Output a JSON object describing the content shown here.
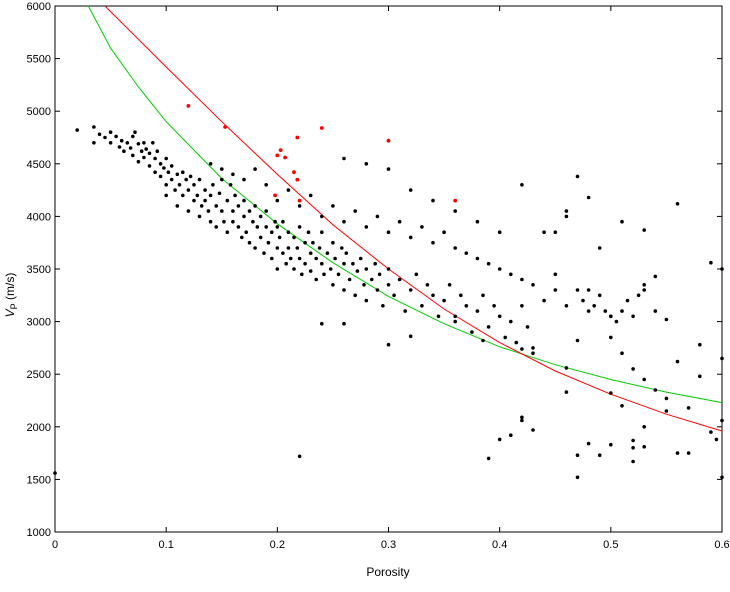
{
  "chart_data": {
    "type": "scatter",
    "xlabel": "Porosity",
    "ylabel_main": "V",
    "ylabel_sub": "P",
    "ylabel_unit": " (m/s)",
    "xlim": [
      0,
      0.6
    ],
    "ylim": [
      1000,
      6000
    ],
    "x_ticks": [
      "0",
      "0.1",
      "0.2",
      "0.3",
      "0.4",
      "0.5",
      "0.6"
    ],
    "y_ticks": [
      "1000",
      "1500",
      "2000",
      "2500",
      "3000",
      "3500",
      "4000",
      "4500",
      "5000",
      "5500",
      "6000"
    ],
    "grid": false,
    "legend": "none",
    "colors": {
      "points": "#000000",
      "highlight_points": "#ff0000",
      "green_curve": "#00cc00",
      "red_curve": "#ff0000"
    },
    "series_black": [
      [
        0.0,
        1560
      ],
      [
        0.02,
        4820
      ],
      [
        0.035,
        4850
      ],
      [
        0.035,
        4700
      ],
      [
        0.04,
        4780
      ],
      [
        0.045,
        4750
      ],
      [
        0.05,
        4800
      ],
      [
        0.05,
        4700
      ],
      [
        0.055,
        4760
      ],
      [
        0.058,
        4660
      ],
      [
        0.06,
        4720
      ],
      [
        0.062,
        4620
      ],
      [
        0.065,
        4700
      ],
      [
        0.068,
        4650
      ],
      [
        0.07,
        4760
      ],
      [
        0.07,
        4580
      ],
      [
        0.072,
        4800
      ],
      [
        0.075,
        4690
      ],
      [
        0.075,
        4520
      ],
      [
        0.078,
        4620
      ],
      [
        0.08,
        4700
      ],
      [
        0.08,
        4560
      ],
      [
        0.082,
        4640
      ],
      [
        0.085,
        4480
      ],
      [
        0.085,
        4600
      ],
      [
        0.088,
        4700
      ],
      [
        0.09,
        4550
      ],
      [
        0.09,
        4420
      ],
      [
        0.092,
        4620
      ],
      [
        0.095,
        4500
      ],
      [
        0.095,
        4380
      ],
      [
        0.098,
        4460
      ],
      [
        0.1,
        4550
      ],
      [
        0.1,
        4300
      ],
      [
        0.1,
        4200
      ],
      [
        0.102,
        4420
      ],
      [
        0.105,
        4350
      ],
      [
        0.105,
        4480
      ],
      [
        0.108,
        4250
      ],
      [
        0.11,
        4400
      ],
      [
        0.11,
        4100
      ],
      [
        0.112,
        4300
      ],
      [
        0.115,
        4420
      ],
      [
        0.115,
        4200
      ],
      [
        0.118,
        4350
      ],
      [
        0.12,
        4250
      ],
      [
        0.12,
        4050
      ],
      [
        0.122,
        4380
      ],
      [
        0.125,
        4150
      ],
      [
        0.125,
        4300
      ],
      [
        0.128,
        4200
      ],
      [
        0.13,
        4350
      ],
      [
        0.13,
        4000
      ],
      [
        0.132,
        4100
      ],
      [
        0.135,
        4250
      ],
      [
        0.135,
        4150
      ],
      [
        0.138,
        4050
      ],
      [
        0.14,
        4200
      ],
      [
        0.14,
        3950
      ],
      [
        0.142,
        4300
      ],
      [
        0.145,
        4100
      ],
      [
        0.145,
        3900
      ],
      [
        0.148,
        4220
      ],
      [
        0.15,
        4050
      ],
      [
        0.15,
        4350
      ],
      [
        0.152,
        3950
      ],
      [
        0.155,
        4150
      ],
      [
        0.155,
        3850
      ],
      [
        0.158,
        4300
      ],
      [
        0.16,
        4050
      ],
      [
        0.16,
        3950
      ],
      [
        0.162,
        4200
      ],
      [
        0.165,
        3900
      ],
      [
        0.165,
        4100
      ],
      [
        0.168,
        3800
      ],
      [
        0.17,
        4000
      ],
      [
        0.17,
        4150
      ],
      [
        0.172,
        3850
      ],
      [
        0.175,
        4050
      ],
      [
        0.175,
        3750
      ],
      [
        0.178,
        3950
      ],
      [
        0.18,
        4100
      ],
      [
        0.18,
        3700
      ],
      [
        0.182,
        3900
      ],
      [
        0.185,
        3800
      ],
      [
        0.185,
        4000
      ],
      [
        0.188,
        3650
      ],
      [
        0.19,
        3900
      ],
      [
        0.19,
        4050
      ],
      [
        0.192,
        3750
      ],
      [
        0.195,
        3600
      ],
      [
        0.195,
        3850
      ],
      [
        0.198,
        3950
      ],
      [
        0.2,
        3700
      ],
      [
        0.2,
        3500
      ],
      [
        0.2,
        3900
      ],
      [
        0.202,
        3800
      ],
      [
        0.205,
        3650
      ],
      [
        0.205,
        3950
      ],
      [
        0.208,
        3550
      ],
      [
        0.21,
        3850
      ],
      [
        0.21,
        3700
      ],
      [
        0.212,
        3600
      ],
      [
        0.215,
        3800
      ],
      [
        0.215,
        3500
      ],
      [
        0.218,
        3700
      ],
      [
        0.22,
        3900
      ],
      [
        0.22,
        3600
      ],
      [
        0.222,
        3450
      ],
      [
        0.225,
        3750
      ],
      [
        0.225,
        3550
      ],
      [
        0.228,
        3850
      ],
      [
        0.23,
        3650
      ],
      [
        0.23,
        3480
      ],
      [
        0.232,
        3750
      ],
      [
        0.235,
        3600
      ],
      [
        0.235,
        3400
      ],
      [
        0.238,
        3700
      ],
      [
        0.24,
        3550
      ],
      [
        0.24,
        3850
      ],
      [
        0.242,
        3450
      ],
      [
        0.245,
        3650
      ],
      [
        0.248,
        3500
      ],
      [
        0.25,
        3750
      ],
      [
        0.25,
        3350
      ],
      [
        0.252,
        3600
      ],
      [
        0.255,
        3450
      ],
      [
        0.258,
        3700
      ],
      [
        0.26,
        3550
      ],
      [
        0.26,
        3300
      ],
      [
        0.262,
        3650
      ],
      [
        0.265,
        3400
      ],
      [
        0.268,
        3550
      ],
      [
        0.27,
        3250
      ],
      [
        0.272,
        3480
      ],
      [
        0.275,
        3600
      ],
      [
        0.278,
        3350
      ],
      [
        0.28,
        3500
      ],
      [
        0.28,
        3200
      ],
      [
        0.285,
        3400
      ],
      [
        0.288,
        3550
      ],
      [
        0.29,
        3300
      ],
      [
        0.292,
        3450
      ],
      [
        0.295,
        3150
      ],
      [
        0.3,
        3350
      ],
      [
        0.3,
        3500
      ],
      [
        0.305,
        3250
      ],
      [
        0.31,
        3400
      ],
      [
        0.315,
        3100
      ],
      [
        0.32,
        3300
      ],
      [
        0.325,
        3450
      ],
      [
        0.33,
        3150
      ],
      [
        0.335,
        3350
      ],
      [
        0.34,
        3250
      ],
      [
        0.345,
        3050
      ],
      [
        0.35,
        3200
      ],
      [
        0.355,
        3350
      ],
      [
        0.36,
        3050
      ],
      [
        0.365,
        3250
      ],
      [
        0.37,
        3150
      ],
      [
        0.375,
        2900
      ],
      [
        0.38,
        3100
      ],
      [
        0.385,
        3250
      ],
      [
        0.39,
        2950
      ],
      [
        0.395,
        3150
      ],
      [
        0.4,
        3050
      ],
      [
        0.405,
        2850
      ],
      [
        0.41,
        3000
      ],
      [
        0.415,
        2800
      ],
      [
        0.42,
        3150
      ],
      [
        0.425,
        2950
      ],
      [
        0.43,
        2750
      ],
      [
        0.14,
        4500
      ],
      [
        0.15,
        4450
      ],
      [
        0.16,
        4400
      ],
      [
        0.17,
        4350
      ],
      [
        0.18,
        4450
      ],
      [
        0.19,
        4300
      ],
      [
        0.2,
        4150
      ],
      [
        0.21,
        4250
      ],
      [
        0.22,
        4100
      ],
      [
        0.23,
        4200
      ],
      [
        0.24,
        4000
      ],
      [
        0.25,
        4100
      ],
      [
        0.26,
        3950
      ],
      [
        0.27,
        4050
      ],
      [
        0.28,
        3900
      ],
      [
        0.29,
        4000
      ],
      [
        0.3,
        3850
      ],
      [
        0.31,
        3950
      ],
      [
        0.32,
        3800
      ],
      [
        0.33,
        3900
      ],
      [
        0.34,
        3750
      ],
      [
        0.35,
        3850
      ],
      [
        0.36,
        3700
      ],
      [
        0.37,
        3650
      ],
      [
        0.38,
        3600
      ],
      [
        0.39,
        3550
      ],
      [
        0.4,
        3500
      ],
      [
        0.41,
        3450
      ],
      [
        0.42,
        3400
      ],
      [
        0.43,
        3350
      ],
      [
        0.26,
        4550
      ],
      [
        0.28,
        4500
      ],
      [
        0.3,
        4450
      ],
      [
        0.32,
        4250
      ],
      [
        0.34,
        4150
      ],
      [
        0.36,
        4050
      ],
      [
        0.38,
        3950
      ],
      [
        0.4,
        3850
      ],
      [
        0.42,
        4300
      ],
      [
        0.44,
        3850
      ],
      [
        0.22,
        1720
      ],
      [
        0.24,
        2980
      ],
      [
        0.26,
        2980
      ],
      [
        0.3,
        2780
      ],
      [
        0.32,
        2860
      ],
      [
        0.36,
        3000
      ],
      [
        0.385,
        2820
      ],
      [
        0.39,
        1700
      ],
      [
        0.4,
        1880
      ],
      [
        0.41,
        1920
      ],
      [
        0.42,
        2060
      ],
      [
        0.42,
        2090
      ],
      [
        0.43,
        1970
      ],
      [
        0.42,
        2740
      ],
      [
        0.43,
        2700
      ],
      [
        0.45,
        3450
      ],
      [
        0.46,
        2560
      ],
      [
        0.46,
        2330
      ],
      [
        0.47,
        1520
      ],
      [
        0.47,
        1730
      ],
      [
        0.47,
        2820
      ],
      [
        0.47,
        4380
      ],
      [
        0.48,
        4180
      ],
      [
        0.48,
        1840
      ],
      [
        0.49,
        3700
      ],
      [
        0.49,
        1730
      ],
      [
        0.5,
        1830
      ],
      [
        0.5,
        2320
      ],
      [
        0.51,
        3950
      ],
      [
        0.51,
        2200
      ],
      [
        0.52,
        1870
      ],
      [
        0.52,
        1800
      ],
      [
        0.52,
        1670
      ],
      [
        0.53,
        1810
      ],
      [
        0.53,
        3870
      ],
      [
        0.53,
        2000
      ],
      [
        0.54,
        3430
      ],
      [
        0.55,
        3020
      ],
      [
        0.55,
        2270
      ],
      [
        0.56,
        4120
      ],
      [
        0.56,
        2620
      ],
      [
        0.56,
        1750
      ],
      [
        0.57,
        1750
      ],
      [
        0.57,
        2180
      ],
      [
        0.58,
        2480
      ],
      [
        0.58,
        2780
      ],
      [
        0.59,
        3560
      ],
      [
        0.59,
        1950
      ],
      [
        0.595,
        1880
      ],
      [
        0.6,
        2650
      ],
      [
        0.6,
        2060
      ],
      [
        0.6,
        1520
      ],
      [
        0.6,
        3500
      ],
      [
        0.44,
        3200
      ],
      [
        0.45,
        3300
      ],
      [
        0.46,
        3150
      ],
      [
        0.47,
        3300
      ],
      [
        0.475,
        3200
      ],
      [
        0.48,
        3300
      ],
      [
        0.485,
        3150
      ],
      [
        0.49,
        3250
      ],
      [
        0.495,
        3100
      ],
      [
        0.5,
        3050
      ],
      [
        0.505,
        3000
      ],
      [
        0.51,
        3100
      ],
      [
        0.515,
        3200
      ],
      [
        0.52,
        3050
      ],
      [
        0.525,
        3250
      ],
      [
        0.53,
        3300
      ],
      [
        0.54,
        3100
      ],
      [
        0.5,
        2850
      ],
      [
        0.51,
        2700
      ],
      [
        0.52,
        2550
      ],
      [
        0.53,
        2450
      ],
      [
        0.54,
        2350
      ],
      [
        0.55,
        2150
      ],
      [
        0.45,
        3850
      ],
      [
        0.46,
        4000
      ],
      [
        0.46,
        4050
      ],
      [
        0.48,
        3100
      ],
      [
        0.5,
        3050
      ],
      [
        0.53,
        3350
      ]
    ],
    "series_red_points": [
      [
        0.12,
        5050
      ],
      [
        0.153,
        4850
      ],
      [
        0.198,
        4200
      ],
      [
        0.2,
        4580
      ],
      [
        0.203,
        4630
      ],
      [
        0.207,
        4560
      ],
      [
        0.215,
        4420
      ],
      [
        0.218,
        4350
      ],
      [
        0.218,
        4750
      ],
      [
        0.22,
        4150
      ],
      [
        0.24,
        4840
      ],
      [
        0.3,
        4720
      ],
      [
        0.36,
        4150
      ]
    ],
    "curve_green": [
      [
        0.03,
        6000
      ],
      [
        0.05,
        5600
      ],
      [
        0.075,
        5230
      ],
      [
        0.1,
        4900
      ],
      [
        0.15,
        4360
      ],
      [
        0.2,
        3930
      ],
      [
        0.25,
        3560
      ],
      [
        0.3,
        3240
      ],
      [
        0.35,
        2980
      ],
      [
        0.4,
        2760
      ],
      [
        0.45,
        2590
      ],
      [
        0.5,
        2450
      ],
      [
        0.55,
        2330
      ],
      [
        0.6,
        2230
      ]
    ],
    "curve_red": [
      [
        0.045,
        6000
      ],
      [
        0.1,
        5420
      ],
      [
        0.15,
        4900
      ],
      [
        0.2,
        4400
      ],
      [
        0.25,
        3920
      ],
      [
        0.3,
        3500
      ],
      [
        0.35,
        3120
      ],
      [
        0.4,
        2800
      ],
      [
        0.45,
        2530
      ],
      [
        0.5,
        2310
      ],
      [
        0.55,
        2120
      ],
      [
        0.6,
        1960
      ]
    ]
  }
}
